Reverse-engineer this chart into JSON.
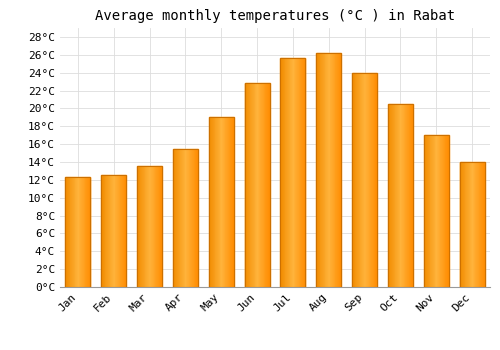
{
  "title": "Average monthly temperatures (°C ) in Rabat",
  "months": [
    "Jan",
    "Feb",
    "Mar",
    "Apr",
    "May",
    "Jun",
    "Jul",
    "Aug",
    "Sep",
    "Oct",
    "Nov",
    "Dec"
  ],
  "temperatures": [
    12.3,
    12.5,
    13.5,
    15.5,
    19.0,
    22.8,
    25.6,
    26.2,
    24.0,
    20.5,
    17.0,
    14.0
  ],
  "bar_color_light": "#FFD966",
  "bar_color_mid": "#FFAA00",
  "bar_color_dark": "#FF8C00",
  "bar_edge_color": "#CC7000",
  "ylim": [
    0,
    29
  ],
  "yticks": [
    0,
    2,
    4,
    6,
    8,
    10,
    12,
    14,
    16,
    18,
    20,
    22,
    24,
    26,
    28
  ],
  "ytick_labels": [
    "0°C",
    "2°C",
    "4°C",
    "6°C",
    "8°C",
    "10°C",
    "12°C",
    "14°C",
    "16°C",
    "18°C",
    "20°C",
    "22°C",
    "24°C",
    "26°C",
    "28°C"
  ],
  "background_color": "#ffffff",
  "grid_color": "#dddddd",
  "title_fontsize": 10,
  "tick_fontsize": 8,
  "font_family": "monospace",
  "bar_width": 0.7
}
